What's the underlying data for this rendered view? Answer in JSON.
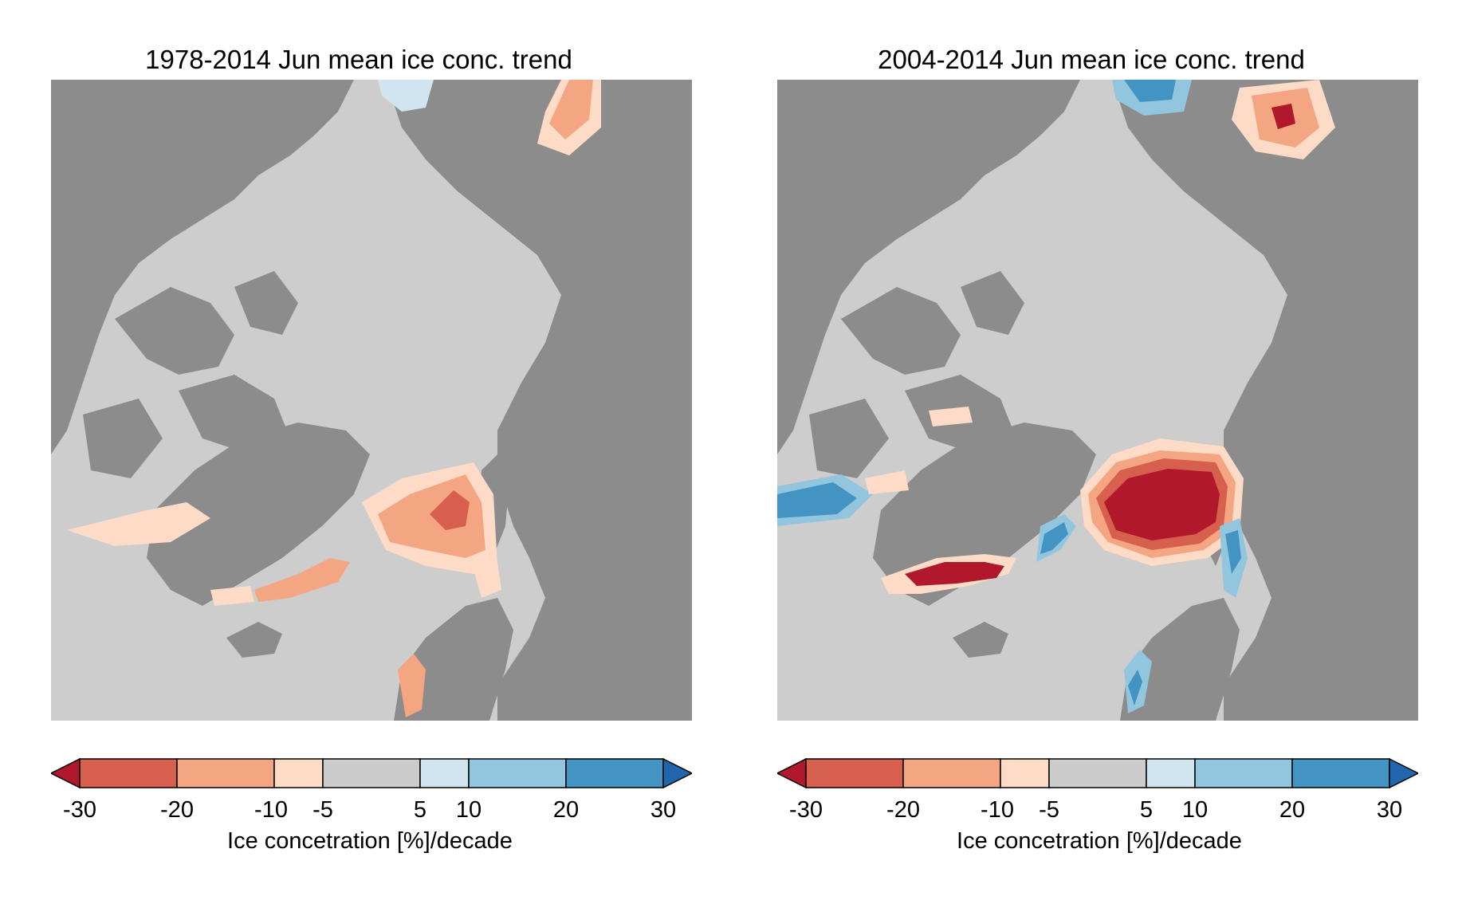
{
  "colors": {
    "land": "#8c8c8c",
    "ocean_neutral": "#cdcdcd",
    "bins": [
      {
        "range": "<-30",
        "color": "#b2182b"
      },
      {
        "range": "-30 to -20",
        "color": "#d6604d"
      },
      {
        "range": "-20 to -10",
        "color": "#f4a582"
      },
      {
        "range": "-10 to -5",
        "color": "#fddbc7"
      },
      {
        "range": "-5 to 5",
        "color": "#cccccc"
      },
      {
        "range": "5 to 10",
        "color": "#d1e5f0"
      },
      {
        "range": "10 to 20",
        "color": "#92c5de"
      },
      {
        "range": "20 to 30",
        "color": "#4393c3"
      },
      {
        "range": ">30",
        "color": "#2166ac"
      }
    ]
  },
  "panels": [
    {
      "title": "1978-2014 Jun mean ice conc. trend",
      "colorbar": {
        "ticks": [
          "-30",
          "-20",
          "-10",
          "-5",
          "5",
          "10",
          "20",
          "30"
        ],
        "label": "Ice concetration [%]/decade"
      }
    },
    {
      "title": "2004-2014 Jun mean ice conc. trend",
      "colorbar": {
        "ticks": [
          "-30",
          "-20",
          "-10",
          "-5",
          "5",
          "10",
          "20",
          "30"
        ],
        "label": "Ice concetration [%]/decade"
      }
    }
  ]
}
